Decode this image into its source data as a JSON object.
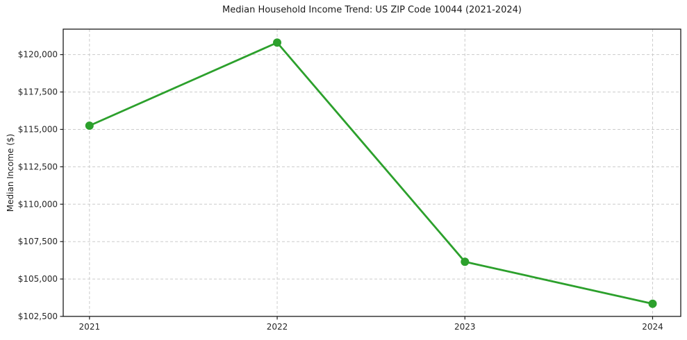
{
  "chart_data": {
    "type": "line",
    "title": "Median Household Income Trend: US ZIP Code 10044 (2021-2024)",
    "xlabel": "",
    "ylabel": "Median Income ($)",
    "x": [
      2021,
      2022,
      2023,
      2024
    ],
    "values": [
      115250,
      120800,
      106150,
      103350
    ],
    "xticks": [
      {
        "value": 2021,
        "label": "2021"
      },
      {
        "value": 2022,
        "label": "2022"
      },
      {
        "value": 2023,
        "label": "2023"
      },
      {
        "value": 2024,
        "label": "2024"
      }
    ],
    "yticks": [
      {
        "value": 102500,
        "label": "$102,500"
      },
      {
        "value": 105000,
        "label": "$105,000"
      },
      {
        "value": 107500,
        "label": "$107,500"
      },
      {
        "value": 110000,
        "label": "$110,000"
      },
      {
        "value": 112500,
        "label": "$112,500"
      },
      {
        "value": 115000,
        "label": "$115,000"
      },
      {
        "value": 117500,
        "label": "$117,500"
      },
      {
        "value": 120000,
        "label": "$120,000"
      }
    ],
    "xlim": [
      2020.86,
      2024.15
    ],
    "ylim": [
      102500,
      121700
    ],
    "grid": true,
    "grid_style": "dashed",
    "legend": "none",
    "line_color": "#2ca02c",
    "grid_color": "#cccccc",
    "spine_color": "#1a1a1a",
    "marker": "circle"
  }
}
